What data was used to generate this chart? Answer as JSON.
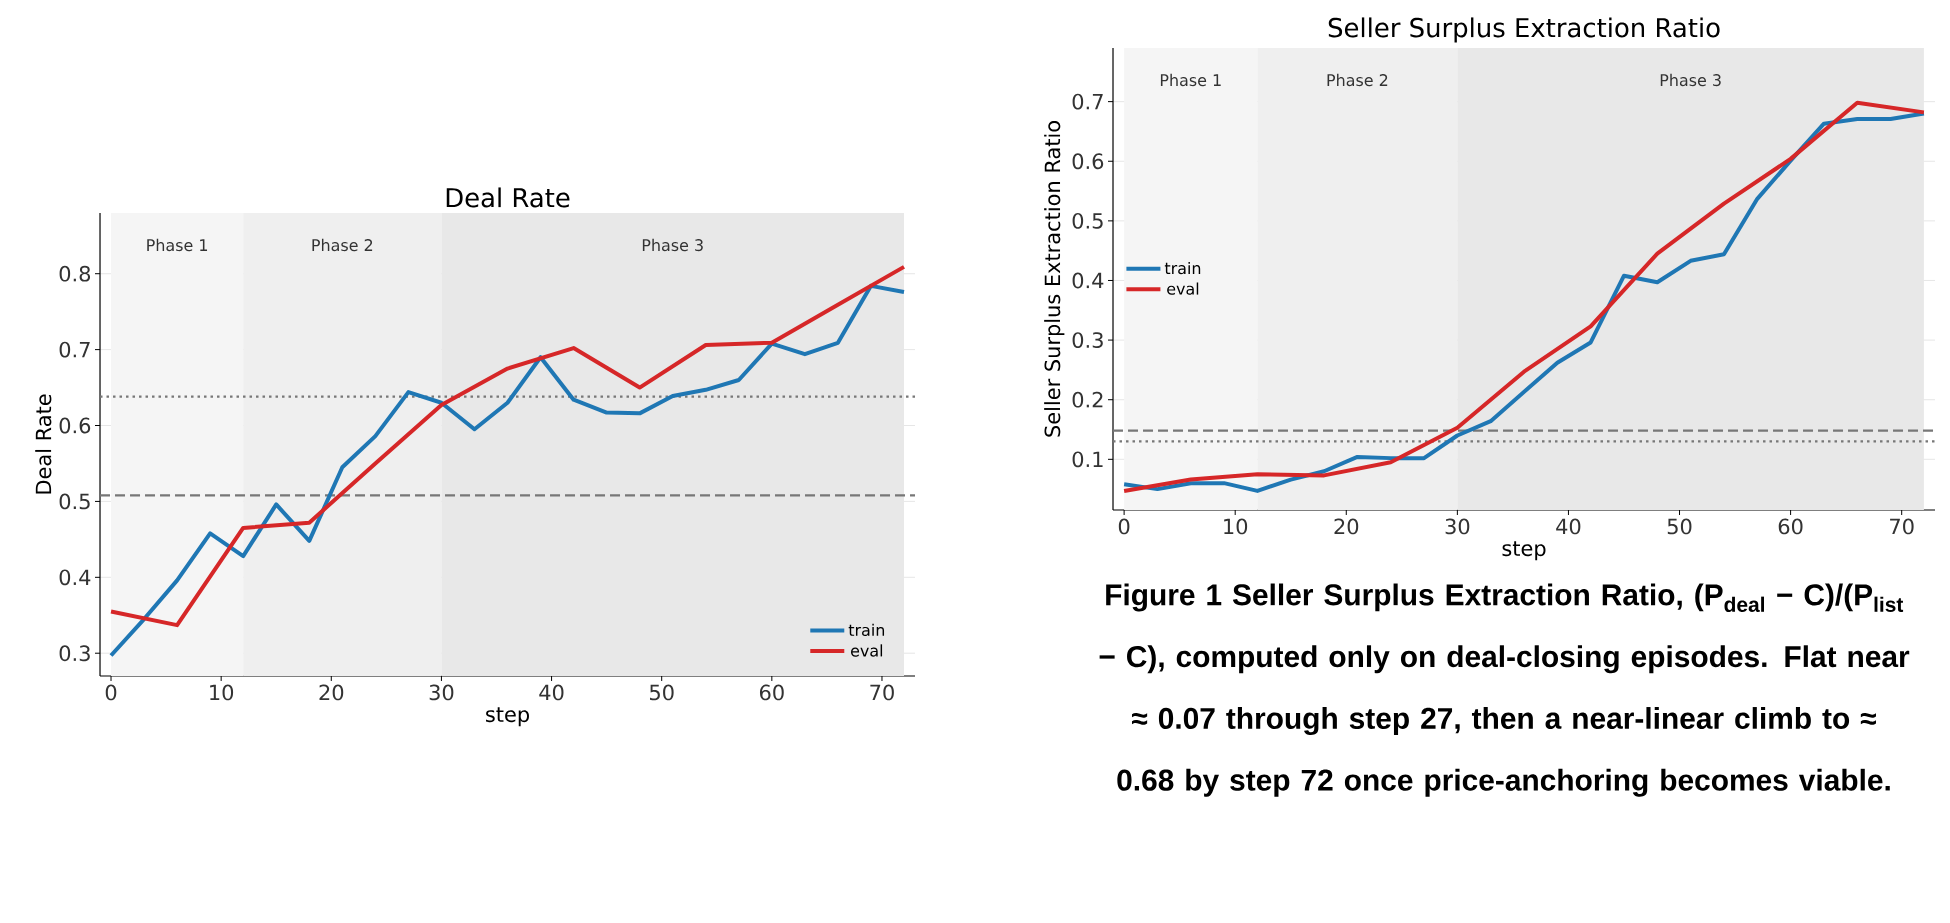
{
  "chart_data": [
    {
      "type": "line",
      "title": "Deal Rate",
      "xlabel": "step",
      "ylabel": "Deal Rate",
      "xlim": [
        -1,
        73
      ],
      "ylim": [
        0.27,
        0.88
      ],
      "xticks": [
        0,
        10,
        20,
        30,
        40,
        50,
        60,
        70
      ],
      "yticks": [
        0.3,
        0.4,
        0.5,
        0.6,
        0.7,
        0.8
      ],
      "grid": "y",
      "legend": "bottom right",
      "line_style": "solid",
      "series": [
        {
          "name": "train",
          "color": "#1f77b4",
          "x": [
            0,
            3,
            6,
            9,
            12,
            15,
            18,
            21,
            24,
            27,
            30,
            33,
            36,
            39,
            42,
            45,
            48,
            51,
            54,
            57,
            60,
            63,
            66,
            69,
            72
          ],
          "values": [
            0.297,
            0.345,
            0.396,
            0.458,
            0.428,
            0.496,
            0.448,
            0.545,
            0.586,
            0.644,
            0.63,
            0.595,
            0.63,
            0.69,
            0.634,
            0.617,
            0.616,
            0.639,
            0.647,
            0.66,
            0.708,
            0.694,
            0.709,
            0.784,
            0.776
          ]
        },
        {
          "name": "eval",
          "color": "#d62728",
          "x": [
            0,
            6,
            12,
            18,
            24,
            30,
            36,
            42,
            48,
            54,
            60,
            66,
            72
          ],
          "values": [
            0.355,
            0.337,
            0.465,
            0.472,
            0.55,
            0.627,
            0.675,
            0.702,
            0.65,
            0.706,
            0.709,
            0.759,
            0.809
          ]
        }
      ],
      "ref_lines": [
        {
          "axis": "y",
          "value": 0.638,
          "color": "#777777",
          "line_style": "dotted"
        },
        {
          "axis": "y",
          "value": 0.508,
          "color": "#777777",
          "line_style": "dashed"
        }
      ],
      "bands": [
        {
          "axis": "x",
          "from": 0,
          "to": 12,
          "label": "Phase 1",
          "color": "#f5f5f5"
        },
        {
          "axis": "x",
          "from": 12,
          "to": 30,
          "label": "Phase 2",
          "color": "#efefef"
        },
        {
          "axis": "x",
          "from": 30,
          "to": 72,
          "label": "Phase 3",
          "color": "#e8e8e8"
        }
      ]
    },
    {
      "type": "line",
      "title": "Seller Surplus Extraction Ratio",
      "xlabel": "step",
      "ylabel": "Seller Surplus Extraction Ratio",
      "xlim": [
        -1,
        73
      ],
      "ylim": [
        0.015,
        0.79
      ],
      "xticks": [
        0,
        10,
        20,
        30,
        40,
        50,
        60,
        70
      ],
      "yticks": [
        0.1,
        0.2,
        0.3,
        0.4,
        0.5,
        0.6,
        0.7
      ],
      "grid": "y",
      "legend": "left",
      "line_style": "solid",
      "series": [
        {
          "name": "train",
          "color": "#1f77b4",
          "x": [
            0,
            3,
            6,
            9,
            12,
            15,
            18,
            21,
            24,
            27,
            30,
            33,
            36,
            39,
            42,
            45,
            48,
            51,
            54,
            57,
            60,
            63,
            66,
            69,
            72
          ],
          "values": [
            0.058,
            0.05,
            0.06,
            0.06,
            0.047,
            0.066,
            0.08,
            0.104,
            0.102,
            0.102,
            0.14,
            0.164,
            0.213,
            0.262,
            0.296,
            0.408,
            0.397,
            0.433,
            0.444,
            0.537,
            0.601,
            0.663,
            0.671,
            0.671,
            0.68
          ]
        },
        {
          "name": "eval",
          "color": "#d62728",
          "x": [
            0,
            6,
            12,
            18,
            24,
            30,
            36,
            42,
            48,
            54,
            60,
            66,
            72
          ],
          "values": [
            0.047,
            0.066,
            0.075,
            0.073,
            0.095,
            0.153,
            0.247,
            0.323,
            0.445,
            0.529,
            0.604,
            0.698,
            0.682
          ]
        }
      ],
      "ref_lines": [
        {
          "axis": "y",
          "value": 0.13,
          "color": "#777777",
          "line_style": "dotted"
        },
        {
          "axis": "y",
          "value": 0.148,
          "color": "#777777",
          "line_style": "dashed"
        }
      ],
      "bands": [
        {
          "axis": "x",
          "from": 0,
          "to": 12,
          "label": "Phase 1",
          "color": "#f5f5f5"
        },
        {
          "axis": "x",
          "from": 12,
          "to": 30,
          "label": "Phase 2",
          "color": "#efefef"
        },
        {
          "axis": "x",
          "from": 30,
          "to": 72,
          "label": "Phase 3",
          "color": "#e8e8e8"
        }
      ],
      "annotations": [
        "Figure 1  Seller Surplus Extraction Ratio, (P$_{deal}$ − C)/(P$_{list}$ − C), computed only on deal-closing episodes. Flat near ≈ 0.07 through step 27, then a near-linear climb to ≈ 0.68 by step 72 once price-anchoring becomes viable."
      ]
    }
  ]
}
